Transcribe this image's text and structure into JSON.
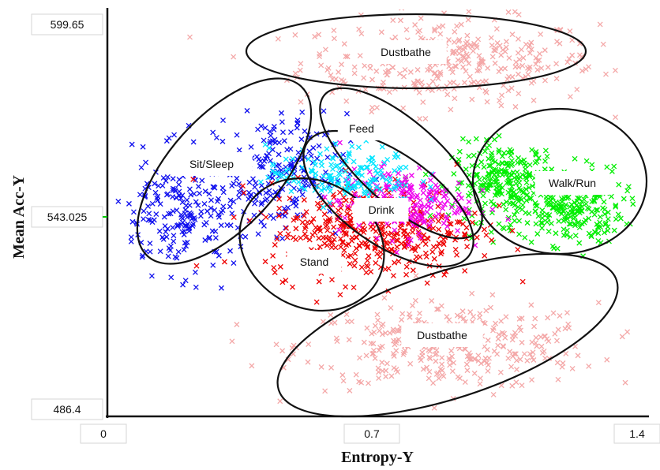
{
  "chart_data": {
    "type": "scatter",
    "title": "",
    "xlabel": "Entropy-Y",
    "ylabel": "Mean Acc-Y",
    "xlim": [
      0,
      1.4
    ],
    "ylim": [
      486.4,
      599.65
    ],
    "x_ticks": [
      "0",
      "0.7",
      "1.4"
    ],
    "y_ticks": [
      "599.65",
      "543.025",
      "486.4"
    ],
    "marker": "x",
    "grid": false,
    "legend": "none",
    "colors": {
      "sit_sleep": "#1010ee",
      "stand": "#ee0000",
      "feed": "#00e5ff",
      "drink": "#ee00ee",
      "walk_run": "#00ee00",
      "dustbathe": "#f4a8a8"
    },
    "series": [
      {
        "key": "sit_sleep",
        "color": "#1010ee",
        "x": [
          0.2,
          0.45
        ],
        "y": [
          543,
          556
        ],
        "spread_x": 0.13,
        "spread_y": 12
      },
      {
        "key": "stand",
        "color": "#ee0000",
        "x": [
          0.7
        ],
        "y": [
          539
        ],
        "spread_x": 0.2,
        "spread_y": 10
      },
      {
        "key": "feed",
        "color": "#00e5ff",
        "x": [
          0.62
        ],
        "y": [
          555
        ],
        "spread_x": 0.14,
        "spread_y": 6
      },
      {
        "key": "drink",
        "color": "#ee00ee",
        "x": [
          0.78
        ],
        "y": [
          547
        ],
        "spread_x": 0.12,
        "spread_y": 7
      },
      {
        "key": "walk_run",
        "color": "#00ee00",
        "x": [
          1.22,
          1.05
        ],
        "y": [
          546,
          553
        ],
        "spread_x": 0.1,
        "spread_y": 8
      },
      {
        "key": "dustbathe",
        "color": "#f4a8a8",
        "x": [
          0.9,
          0.9
        ],
        "y": [
          588,
          505
        ],
        "spread_x": 0.28,
        "spread_y": 9
      }
    ],
    "annotations": [
      {
        "label": "Dustbathe",
        "x": 0.78,
        "y": 588
      },
      {
        "label": "Feed",
        "x": 0.68,
        "y": 558
      },
      {
        "label": "Sit/Sleep",
        "x": 0.33,
        "y": 550
      },
      {
        "label": "Walk/Run",
        "x": 1.22,
        "y": 544
      },
      {
        "label": "Drink",
        "x": 0.72,
        "y": 540
      },
      {
        "label": "Stand",
        "x": 0.54,
        "y": 530
      },
      {
        "label": "Dustbathe",
        "x": 0.89,
        "y": 506
      }
    ]
  }
}
